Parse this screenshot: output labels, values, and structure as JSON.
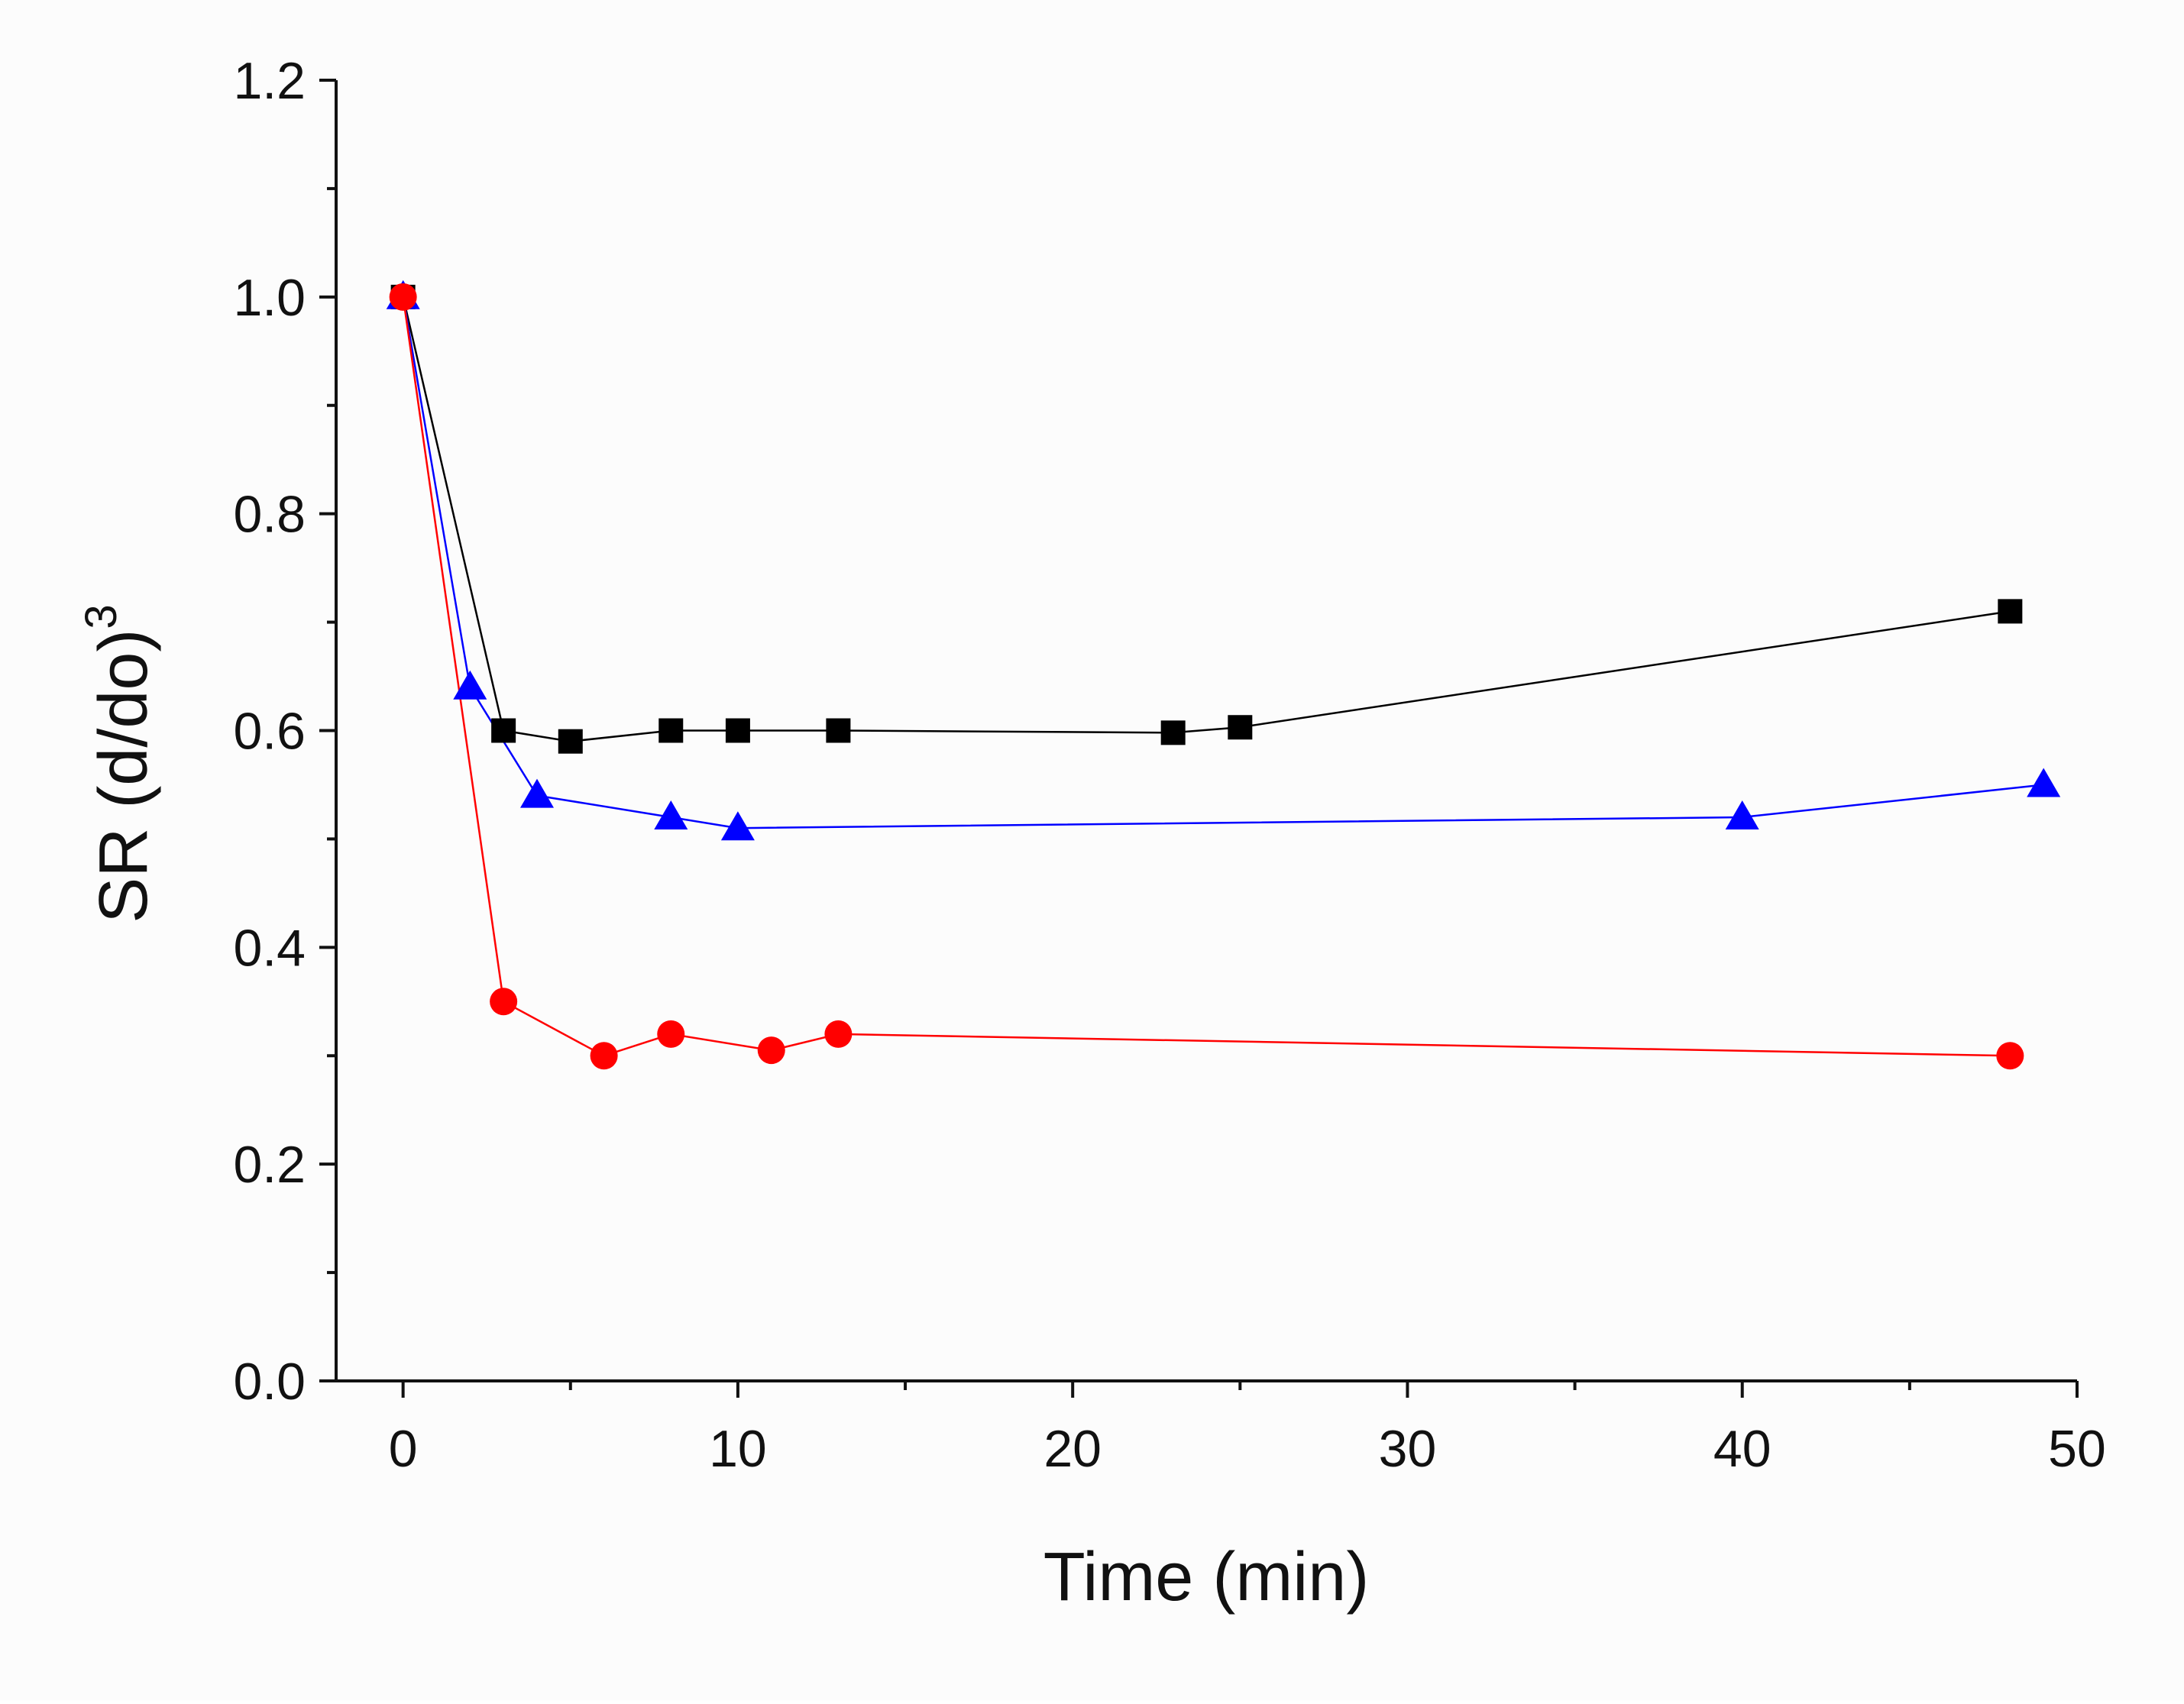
{
  "chart_data": {
    "type": "line",
    "title": "",
    "xlabel": "Time (min)",
    "ylabel_base": "SR (d/do)",
    "ylabel_superscript": "3",
    "xlim": [
      -2,
      50
    ],
    "ylim": [
      0.0,
      1.2
    ],
    "x_ticks": [
      0,
      10,
      20,
      30,
      40,
      50
    ],
    "x_tick_labels": [
      "0",
      "10",
      "20",
      "30",
      "40",
      "50"
    ],
    "y_ticks": [
      0.0,
      0.2,
      0.4,
      0.6,
      0.8,
      1.0,
      1.2
    ],
    "y_tick_labels": [
      "0.0",
      "0.2",
      "0.4",
      "0.6",
      "0.8",
      "1.0",
      "1.2"
    ],
    "x_minor_step": 5,
    "y_minor_step": 0.1,
    "grid": false,
    "legend": "none",
    "series": [
      {
        "name": "black squares",
        "marker": "square",
        "color": "#000000",
        "x": [
          0,
          3,
          5,
          8,
          10,
          13,
          23,
          25,
          48
        ],
        "y": [
          1.0,
          0.6,
          0.59,
          0.6,
          0.6,
          0.6,
          0.598,
          0.603,
          0.71
        ]
      },
      {
        "name": "blue triangles",
        "marker": "triangle",
        "color": "#0000ff",
        "x": [
          0,
          2,
          4,
          8,
          10,
          40,
          49
        ],
        "y": [
          1.0,
          0.64,
          0.54,
          0.52,
          0.51,
          0.52,
          0.55
        ]
      },
      {
        "name": "red circles",
        "marker": "circle",
        "color": "#ff0000",
        "x": [
          0,
          3,
          6,
          8,
          11,
          13,
          48
        ],
        "y": [
          1.0,
          0.35,
          0.3,
          0.32,
          0.305,
          0.32,
          0.3
        ]
      }
    ]
  }
}
